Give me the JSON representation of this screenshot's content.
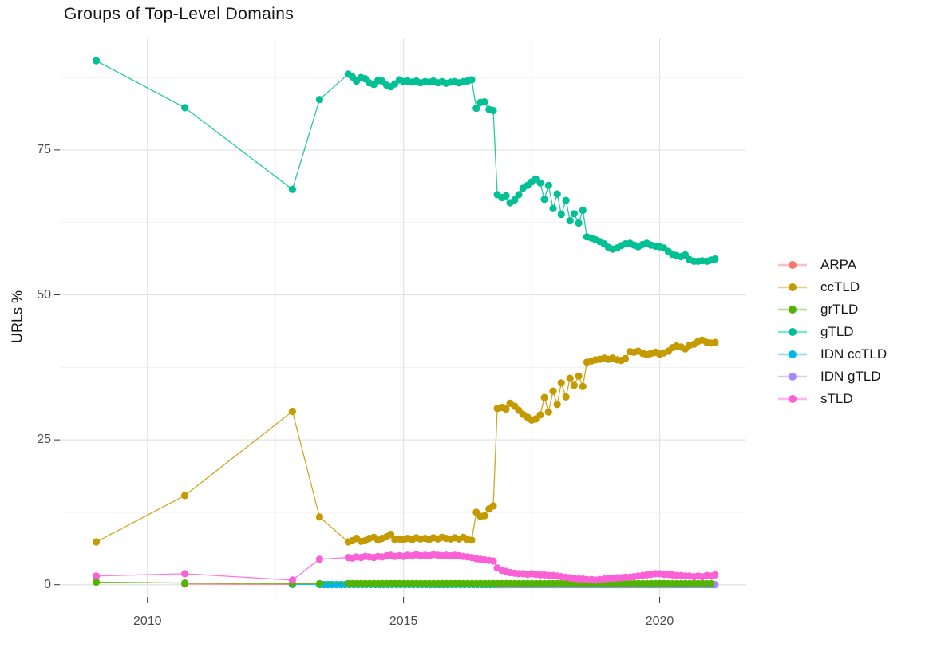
{
  "title": "Groups of Top-Level Domains",
  "axes": {
    "y_label": "URLs %",
    "x_tick_labels": [
      "2010",
      "2015",
      "2020"
    ],
    "y_tick_labels": [
      "0",
      "25",
      "50",
      "75"
    ]
  },
  "legend": {
    "items": [
      "ARPA",
      "ccTLD",
      "grTLD",
      "gTLD",
      "IDN ccTLD",
      "IDN gTLD",
      "sTLD"
    ]
  },
  "colors": {
    "ARPA": "#F8766D",
    "ccTLD": "#C49A00",
    "grTLD": "#53B400",
    "gTLD": "#00C094",
    "IDN ccTLD": "#00B6EB",
    "IDN gTLD": "#A58AFF",
    "sTLD": "#FB61D7",
    "grid_major": "#e3e3e3",
    "grid_minor": "#f0f0f0",
    "tick": "#333333"
  },
  "chart_data": {
    "type": "line",
    "title": "Groups of Top-Level Domains",
    "xlabel": "",
    "ylabel": "URLs %",
    "xlim": [
      2008.29,
      2021.69
    ],
    "ylim": [
      -2.1,
      94.4
    ],
    "x_major_ticks": [
      2010,
      2015,
      2020
    ],
    "y_major_ticks": [
      0,
      25,
      50,
      75
    ],
    "x_minor_ticks": [
      2012.5,
      2017.5
    ],
    "y_minor_ticks": [
      12.5,
      37.5,
      62.5,
      87.5
    ],
    "grid": "major+minor",
    "legend_position": "right",
    "marker": "point",
    "dense_x": [
      2013.92,
      2014,
      2014.08,
      2014.17,
      2014.25,
      2014.33,
      2014.42,
      2014.5,
      2014.58,
      2014.67,
      2014.75,
      2014.83,
      2014.92,
      2015,
      2015.08,
      2015.17,
      2015.25,
      2015.33,
      2015.42,
      2015.5,
      2015.58,
      2015.67,
      2015.75,
      2015.83,
      2015.92,
      2016,
      2016.08,
      2016.17,
      2016.25,
      2016.33,
      2016.42,
      2016.5,
      2016.58,
      2016.67,
      2016.75,
      2016.83,
      2016.92,
      2017,
      2017.08,
      2017.17,
      2017.25,
      2017.33,
      2017.42,
      2017.5,
      2017.58,
      2017.67,
      2017.75,
      2017.83,
      2017.92,
      2018,
      2018.08,
      2018.17,
      2018.25,
      2018.33,
      2018.42,
      2018.5,
      2018.58,
      2018.67,
      2018.75,
      2018.83,
      2018.92,
      2019,
      2019.08,
      2019.17,
      2019.25,
      2019.33,
      2019.42,
      2019.5,
      2019.58,
      2019.67,
      2019.75,
      2019.83,
      2019.92,
      2020,
      2020.08,
      2020.17,
      2020.25,
      2020.33,
      2020.42,
      2020.5,
      2020.58,
      2020.67,
      2020.75,
      2020.83,
      2020.92,
      2021,
      2021.08
    ],
    "draw_order": [
      "ARPA",
      "ccTLD",
      "IDN ccTLD",
      "IDN gTLD",
      "grTLD",
      "gTLD",
      "sTLD"
    ],
    "series": [
      {
        "name": "ARPA",
        "color": "#F8766D",
        "points": [
          [
            2010.73,
            0.12
          ],
          [
            2012.83,
            0.05
          ]
        ]
      },
      {
        "name": "ccTLD",
        "color": "#C49A00",
        "points": [
          [
            2009.0,
            7.4
          ],
          [
            2010.73,
            15.4
          ],
          [
            2012.83,
            29.9
          ],
          [
            2013.36,
            11.7
          ]
        ],
        "dense_values": [
          7.4,
          7.6,
          8.0,
          7.5,
          7.6,
          8.0,
          8.2,
          7.7,
          8.0,
          8.3,
          8.7,
          7.8,
          7.9,
          7.8,
          8.0,
          7.8,
          8.1,
          7.9,
          8.0,
          7.8,
          8.1,
          7.9,
          8.2,
          8.0,
          7.9,
          8.1,
          7.9,
          8.2,
          7.8,
          7.7,
          12.5,
          11.8,
          11.9,
          13.1,
          13.6,
          30.4,
          30.6,
          30.3,
          31.3,
          30.8,
          30.1,
          29.4,
          28.9,
          28.4,
          28.6,
          29.3,
          32.3,
          29.8,
          33.4,
          31.1,
          34.8,
          32.4,
          35.6,
          34.4,
          36.0,
          34.2,
          38.4,
          38.6,
          38.8,
          38.9,
          39.1,
          38.9,
          39.1,
          38.8,
          38.7,
          39.0,
          40.2,
          40.1,
          40.3,
          39.9,
          39.7,
          39.9,
          40.1,
          39.8,
          40.0,
          40.3,
          40.9,
          41.2,
          41.0,
          40.7,
          41.3,
          41.5,
          42.0,
          42.2,
          41.8,
          41.7,
          41.8
        ]
      },
      {
        "name": "grTLD",
        "color": "#53B400",
        "points": [
          [
            2009.0,
            0.45
          ],
          [
            2010.73,
            0.3
          ],
          [
            2012.83,
            0.2
          ],
          [
            2013.36,
            0.2
          ]
        ],
        "flat": {
          "from": 2013.92,
          "to": 2021.08,
          "value": 0.2
        }
      },
      {
        "name": "gTLD",
        "color": "#00C094",
        "points": [
          [
            2009.0,
            90.4
          ],
          [
            2010.73,
            82.3
          ],
          [
            2012.83,
            68.2
          ],
          [
            2013.36,
            83.7
          ]
        ],
        "dense_values": [
          88.1,
          87.6,
          86.9,
          87.5,
          87.3,
          86.6,
          86.3,
          87.0,
          86.9,
          86.2,
          85.9,
          86.4,
          87.1,
          86.8,
          86.9,
          86.7,
          86.9,
          86.6,
          86.8,
          86.7,
          86.9,
          86.6,
          86.8,
          86.5,
          86.7,
          86.8,
          86.6,
          86.8,
          86.9,
          87.1,
          82.2,
          83.2,
          83.3,
          82.0,
          81.8,
          67.3,
          66.8,
          67.1,
          65.9,
          66.4,
          67.3,
          68.4,
          68.9,
          69.5,
          70.0,
          69.3,
          66.5,
          68.9,
          64.9,
          67.4,
          63.9,
          66.3,
          62.8,
          64.0,
          62.4,
          64.6,
          60.0,
          59.8,
          59.5,
          59.2,
          58.8,
          58.2,
          57.9,
          58.1,
          58.5,
          58.8,
          58.9,
          58.6,
          58.3,
          58.7,
          58.9,
          58.6,
          58.4,
          58.3,
          58.1,
          57.5,
          57.0,
          56.8,
          56.6,
          56.9,
          56.1,
          55.8,
          55.8,
          55.9,
          55.8,
          56.0,
          56.2
        ]
      },
      {
        "name": "IDN ccTLD",
        "color": "#00B6EB",
        "points": [
          [
            2012.83,
            0.05
          ]
        ],
        "flat": {
          "from": 2013.36,
          "to": 2021.08,
          "value": 0.03
        }
      },
      {
        "name": "IDN gTLD",
        "color": "#A58AFF",
        "points": [],
        "flat": {
          "from": 2016.83,
          "to": 2021.08,
          "value": 0.02
        }
      },
      {
        "name": "sTLD",
        "color": "#FB61D7",
        "points": [
          [
            2009.0,
            1.5
          ],
          [
            2010.73,
            1.9
          ],
          [
            2012.83,
            0.8
          ],
          [
            2013.36,
            4.4
          ]
        ],
        "dense_values": [
          4.7,
          4.6,
          4.8,
          4.7,
          4.9,
          4.8,
          4.7,
          4.9,
          4.8,
          5.0,
          5.1,
          4.9,
          5.0,
          4.9,
          5.1,
          5.0,
          5.2,
          5.0,
          5.1,
          5.0,
          5.2,
          5.1,
          5.0,
          5.1,
          5.0,
          5.1,
          5.0,
          4.9,
          4.8,
          4.7,
          4.5,
          4.4,
          4.3,
          4.2,
          4.1,
          2.9,
          2.5,
          2.3,
          2.1,
          2.0,
          1.9,
          1.9,
          1.8,
          1.9,
          1.8,
          1.7,
          1.7,
          1.6,
          1.6,
          1.5,
          1.4,
          1.3,
          1.2,
          1.1,
          1.0,
          1.0,
          0.9,
          0.9,
          0.8,
          0.9,
          1.0,
          1.1,
          1.1,
          1.2,
          1.2,
          1.3,
          1.3,
          1.4,
          1.5,
          1.6,
          1.7,
          1.8,
          1.9,
          1.9,
          1.8,
          1.8,
          1.7,
          1.6,
          1.6,
          1.5,
          1.5,
          1.4,
          1.5,
          1.4,
          1.6,
          1.5,
          1.7
        ]
      }
    ]
  }
}
